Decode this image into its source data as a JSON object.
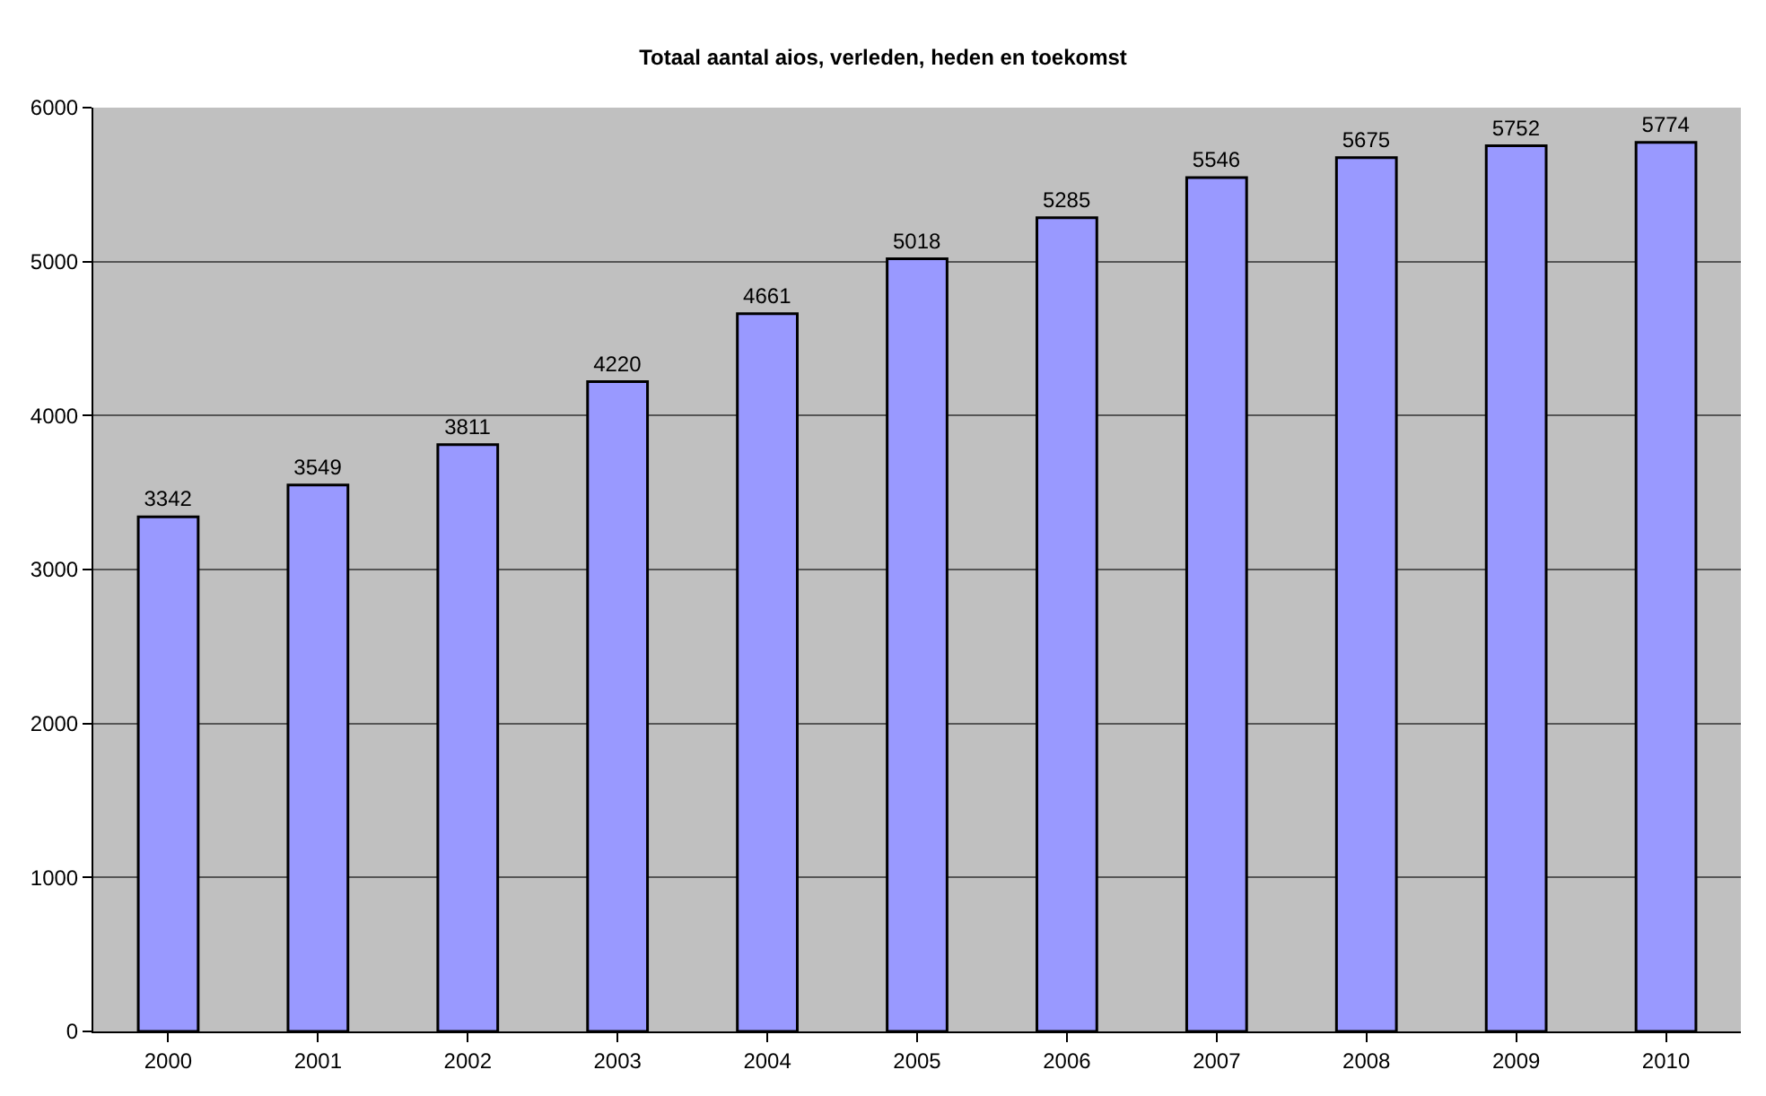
{
  "chart_data": {
    "type": "bar",
    "title": "Totaal aantal aios, verleden, heden en toekomst",
    "categories": [
      "2000",
      "2001",
      "2002",
      "2003",
      "2004",
      "2005",
      "2006",
      "2007",
      "2008",
      "2009",
      "2010"
    ],
    "values": [
      3342,
      3549,
      3811,
      4220,
      4661,
      5018,
      5285,
      5546,
      5675,
      5752,
      5774
    ],
    "color": "#9999ff",
    "ylim": [
      0,
      6000
    ],
    "yticks": [
      0,
      1000,
      2000,
      3000,
      4000,
      5000,
      6000
    ],
    "grid": "y",
    "data_labels": true
  }
}
